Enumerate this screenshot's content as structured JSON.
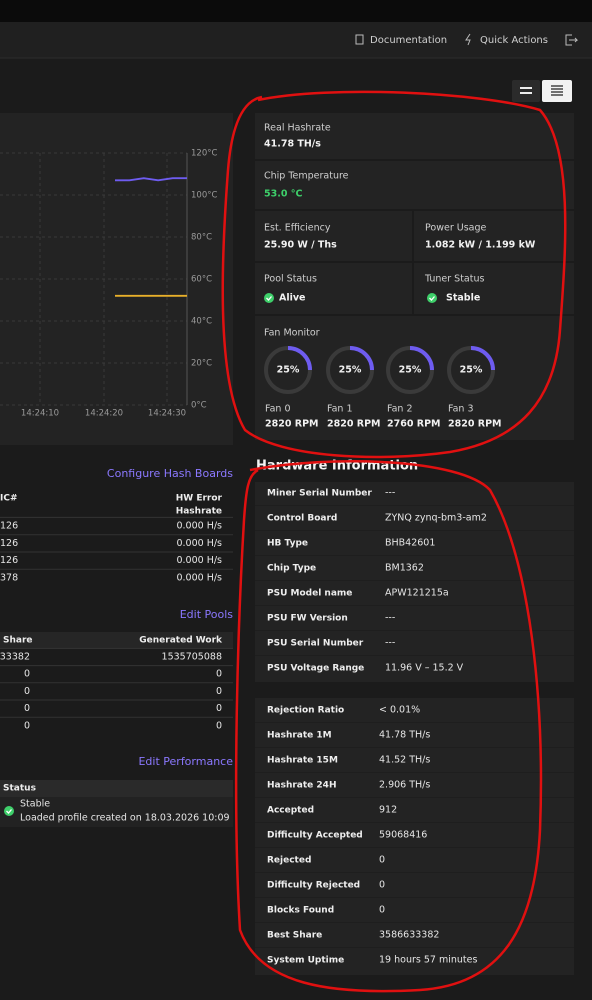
{
  "nav": {
    "documentation": "Documentation",
    "quick_actions": "Quick Actions"
  },
  "chart": {
    "ylim": [
      0,
      120
    ],
    "yticks": [
      {
        "value": 120,
        "label": "120°C"
      },
      {
        "value": 100,
        "label": "100°C"
      },
      {
        "value": 80,
        "label": "80°C"
      },
      {
        "value": 60,
        "label": "60°C"
      },
      {
        "value": 40,
        "label": "40°C"
      },
      {
        "value": 20,
        "label": "20°C"
      },
      {
        "value": 0,
        "label": "0°C"
      }
    ],
    "categories": [
      "14:24:10",
      "14:24:20",
      "14:24:30"
    ],
    "series": [
      {
        "color": "#6e5cf0",
        "values": [
          107,
          107,
          108,
          107,
          108,
          108
        ]
      },
      {
        "color": "#e8b02a",
        "values": [
          52,
          52,
          52,
          52,
          52,
          52
        ]
      }
    ]
  },
  "summary": {
    "real_hashrate": {
      "label": "Real Hashrate",
      "value": "41.78  TH/s"
    },
    "chip_temperature": {
      "label": "Chip Temperature",
      "value": "53.0 °C"
    },
    "efficiency": {
      "label": "Est. Efficiency",
      "value": "25.90 W / Ths"
    },
    "power": {
      "label": "Power Usage",
      "value": "1.082 kW   /   1.199 kW"
    },
    "pool_status": {
      "label": "Pool Status",
      "value": "Alive"
    },
    "tuner_status": {
      "label": "Tuner Status",
      "value": "Stable"
    },
    "fan_monitor": "Fan Monitor",
    "fans": {
      "values": [
        25,
        25,
        25,
        25
      ],
      "value_labels": [
        "25%",
        "25%",
        "25%",
        "25%"
      ],
      "names": [
        "Fan 0",
        "Fan 1",
        "Fan 2",
        "Fan 3"
      ],
      "rpm": [
        "2820 RPM",
        "2820 RPM",
        "2760 RPM",
        "2820 RPM"
      ]
    }
  },
  "hardware": {
    "title": "Hardware Information",
    "info": [
      [
        "Miner Serial Number",
        "---"
      ],
      [
        "Control Board",
        "ZYNQ    zynq-bm3-am2"
      ],
      [
        "HB Type",
        "BHB42601"
      ],
      [
        "Chip Type",
        "BM1362"
      ],
      [
        "PSU Model name",
        "APW121215a"
      ],
      [
        "PSU FW Version",
        "---"
      ],
      [
        "PSU Serial Number",
        "---"
      ],
      [
        "PSU Voltage Range",
        "11.96 V – 15.2 V"
      ]
    ],
    "stats": [
      [
        "Rejection Ratio",
        "< 0.01%"
      ],
      [
        "Hashrate 1M",
        "41.78  TH/s"
      ],
      [
        "Hashrate 15M",
        "41.52  TH/s"
      ],
      [
        "Hashrate 24H",
        "2.906  TH/s"
      ],
      [
        "Accepted",
        "912"
      ],
      [
        "Difficulty Accepted",
        "59068416"
      ],
      [
        "Rejected",
        "0"
      ],
      [
        "Difficulty Rejected",
        "0"
      ],
      [
        "Blocks Found",
        "0"
      ],
      [
        "Best Share",
        "3586633382"
      ],
      [
        "System Uptime",
        "19 hours 57 minutes"
      ]
    ]
  },
  "hash_boards": {
    "link": "Configure Hash Boards",
    "header": [
      "IC#",
      "HW Error",
      "Hashrate"
    ],
    "rows": [
      [
        "126",
        "0.000 H/s"
      ],
      [
        "126",
        "0.000 H/s"
      ],
      [
        "126",
        "0.000 H/s"
      ],
      [
        "378",
        "0.000 H/s"
      ]
    ]
  },
  "pools": {
    "link": "Edit Pools",
    "header": [
      "Share",
      "Generated Work"
    ],
    "rows": [
      [
        "33382",
        "1535705088"
      ],
      [
        "0",
        "0"
      ],
      [
        "0",
        "0"
      ],
      [
        "0",
        "0"
      ],
      [
        "0",
        "0"
      ]
    ]
  },
  "performance": {
    "link": "Edit Performance",
    "header": "Status",
    "status": "Stable",
    "detail": "Loaded profile created on 18.03.2026 10:09"
  }
}
